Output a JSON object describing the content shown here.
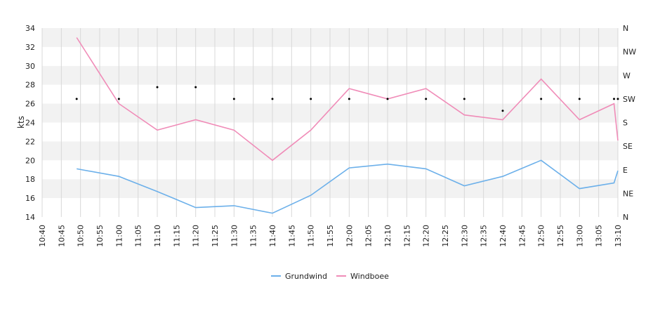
{
  "chart_data": {
    "type": "line",
    "ylabel": "kts",
    "ylim": [
      14,
      34
    ],
    "y_ticks": [
      "14",
      "16",
      "18",
      "20",
      "22",
      "24",
      "26",
      "28",
      "30",
      "32",
      "34"
    ],
    "right_axis_labels": [
      "N",
      "NE",
      "E",
      "SE",
      "S",
      "SW",
      "W",
      "NW",
      "N"
    ],
    "x_ticks": [
      "10:40",
      "10:45",
      "10:50",
      "10:55",
      "11:00",
      "11:05",
      "11:10",
      "11:15",
      "11:20",
      "11:25",
      "11:30",
      "11:35",
      "11:40",
      "11:45",
      "11:50",
      "11:55",
      "12:00",
      "12:05",
      "12:10",
      "12:15",
      "12:20",
      "12:25",
      "12:30",
      "12:35",
      "12:40",
      "12:45",
      "12:50",
      "12:55",
      "13:00",
      "13:05",
      "13:10"
    ],
    "grid": true,
    "legend_position": "bottom-center",
    "series": [
      {
        "name": "Grundwind",
        "color": "#6cb0ea",
        "x": [
          "10:49",
          "11:00",
          "11:10",
          "11:20",
          "11:30",
          "11:40",
          "11:50",
          "12:00",
          "12:10",
          "12:20",
          "12:30",
          "12:40",
          "12:50",
          "13:00",
          "13:09",
          "13:10"
        ],
        "values": [
          19.1,
          18.3,
          16.7,
          15.0,
          15.2,
          14.4,
          16.3,
          19.2,
          19.6,
          19.1,
          17.3,
          18.3,
          20.0,
          17.0,
          17.6,
          18.9
        ]
      },
      {
        "name": "Windboee",
        "color": "#f08cb8",
        "x": [
          "10:49",
          "11:00",
          "11:10",
          "11:20",
          "11:30",
          "11:40",
          "11:50",
          "12:00",
          "12:10",
          "12:20",
          "12:30",
          "12:40",
          "12:50",
          "13:00",
          "13:09",
          "13:10"
        ],
        "values": [
          33.0,
          26.0,
          23.2,
          24.3,
          23.2,
          20.0,
          23.2,
          27.6,
          26.5,
          27.6,
          24.8,
          24.3,
          28.6,
          24.3,
          26.0,
          22.1
        ]
      }
    ],
    "direction_markers": {
      "x": [
        "10:49",
        "11:00",
        "11:10",
        "11:20",
        "11:30",
        "11:40",
        "11:50",
        "12:00",
        "12:10",
        "12:20",
        "12:30",
        "12:40",
        "12:50",
        "13:00",
        "13:09",
        "13:10"
      ],
      "values": [
        "SW",
        "SW",
        "WSW",
        "WSW",
        "SW",
        "SW",
        "SW",
        "SW",
        "SW",
        "SW",
        "SW",
        "SSW",
        "SW",
        "SW",
        "SW",
        "SW"
      ]
    }
  }
}
